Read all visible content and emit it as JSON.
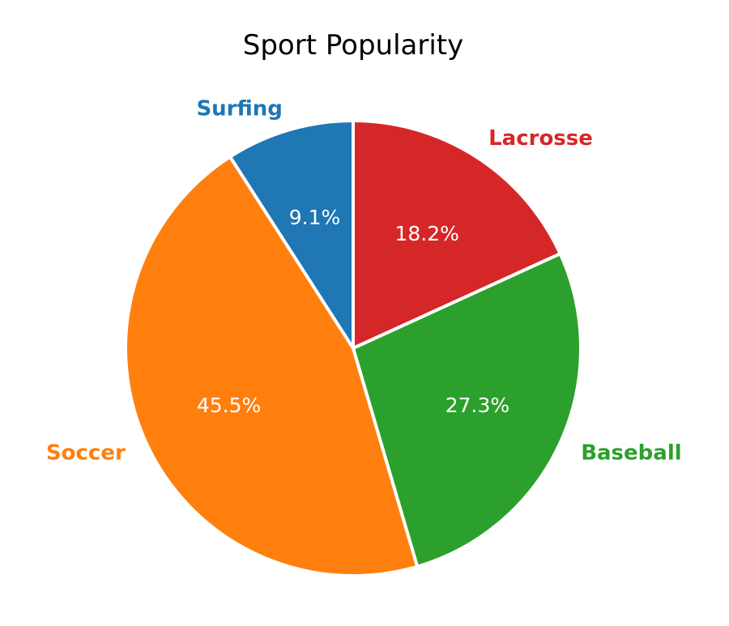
{
  "chart_data": {
    "type": "pie",
    "title": "Sport Popularity",
    "start_angle_deg": 90,
    "direction": "clockwise",
    "slices": [
      {
        "label": "Lacrosse",
        "value": 18.2,
        "pct_label": "18.2%",
        "color": "#d62728"
      },
      {
        "label": "Baseball",
        "value": 27.3,
        "pct_label": "27.3%",
        "color": "#2ca02c"
      },
      {
        "label": "Soccer",
        "value": 45.5,
        "pct_label": "45.5%",
        "color": "#ff7f0e"
      },
      {
        "label": "Surfing",
        "value": 9.1,
        "pct_label": "9.1%",
        "color": "#1f77b4"
      }
    ],
    "legend": "none"
  }
}
